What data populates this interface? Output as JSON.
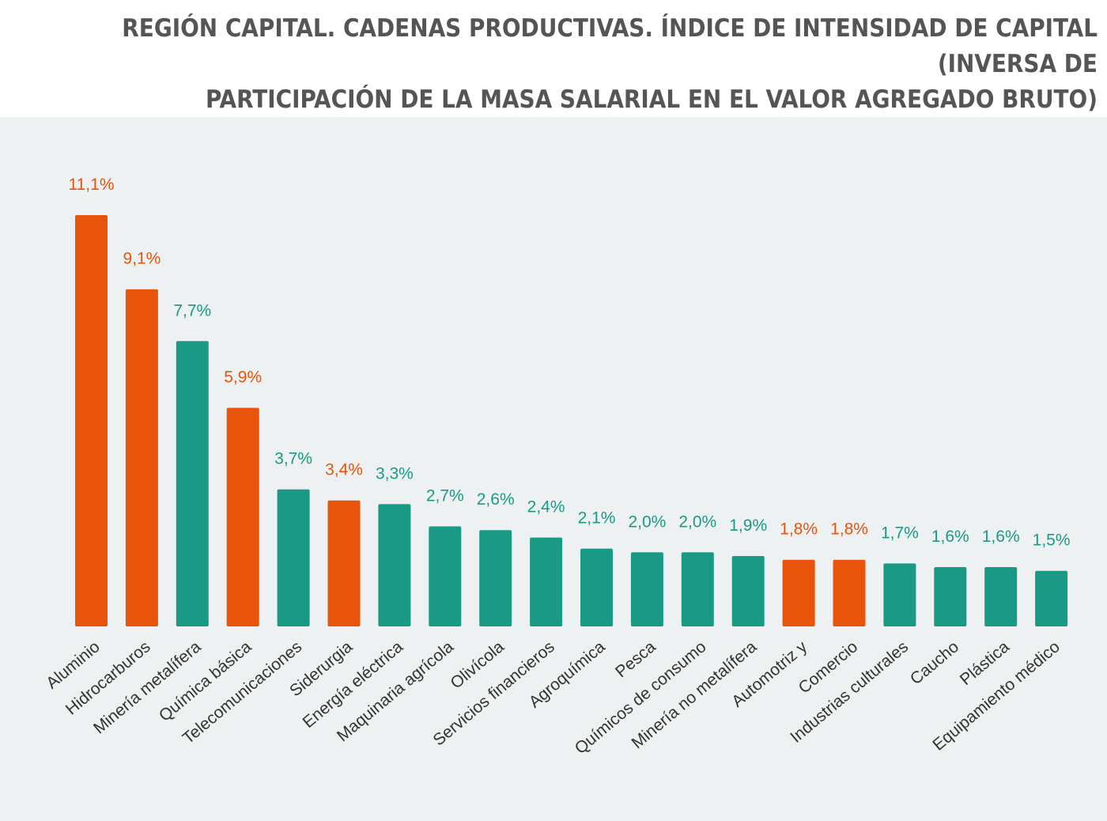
{
  "title_lines": [
    "REGIÓN CAPITAL. CADENAS PRODUCTIVAS. ÍNDICE DE INTENSIDAD DE CAPITAL (INVERSA DE",
    "PARTICIPACIÓN DE LA MASA SALARIAL EN EL VALOR AGREGADO BRUTO)"
  ],
  "colors": {
    "orange": "#e8540a",
    "teal": "#1a9a86",
    "panel": "#edf1f2"
  },
  "chart_data": {
    "type": "bar",
    "title": "REGIÓN CAPITAL. CADENAS PRODUCTIVAS. ÍNDICE DE INTENSIDAD DE CAPITAL (INVERSA DE PARTICIPACIÓN DE LA MASA SALARIAL EN EL VALOR AGREGADO BRUTO)",
    "categories": [
      "Aluminio",
      "Hidrocarburos",
      "Minería metalífera",
      "Química básica",
      "Telecomunicaciones",
      "Siderurgia",
      "Energía eléctrica",
      "Maquinaria agrícola",
      "Olivícola",
      "Servicios financieros",
      "Agroquímica",
      "Pesca",
      "Químicos de consumo",
      "Minería no metalífera",
      "Automotriz y",
      "Comercio",
      "Industrias culturales",
      "Caucho",
      "Plástica",
      "Equipamiento médico"
    ],
    "values": [
      11.1,
      9.1,
      7.7,
      5.9,
      3.7,
      3.4,
      3.3,
      2.7,
      2.6,
      2.4,
      2.1,
      2.0,
      2.0,
      1.9,
      1.8,
      1.8,
      1.7,
      1.6,
      1.6,
      1.5
    ],
    "labels": [
      "11,1%",
      "9,1%",
      "7,7%",
      "5,9%",
      "3,7%",
      "3,4%",
      "3,3%",
      "2,7%",
      "2,6%",
      "2,4%",
      "2,1%",
      "2,0%",
      "2,0%",
      "1,9%",
      "1,8%",
      "1,8%",
      "1,7%",
      "1,6%",
      "1,6%",
      "1,5%"
    ],
    "bar_colors": [
      "orange",
      "orange",
      "teal",
      "orange",
      "teal",
      "orange",
      "teal",
      "teal",
      "teal",
      "teal",
      "teal",
      "teal",
      "teal",
      "teal",
      "orange",
      "orange",
      "teal",
      "teal",
      "teal",
      "teal"
    ],
    "ylim": [
      0,
      11.1
    ],
    "grid": false,
    "legend": "none"
  }
}
